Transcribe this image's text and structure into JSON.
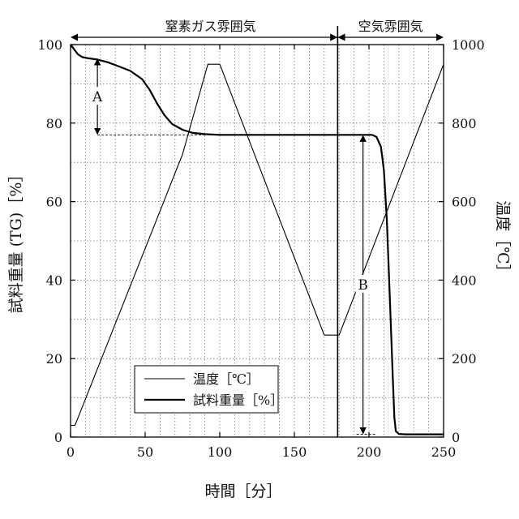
{
  "chart_data": {
    "type": "line",
    "title": "",
    "xlabel": "時間［分］",
    "ylabel_left": "試料重量 (TG)［%］",
    "ylabel_right": "温度［℃］",
    "xlim": [
      0,
      250
    ],
    "ylim_left": [
      0,
      100
    ],
    "ylim_right": [
      0,
      1000
    ],
    "x_ticks": [
      "0",
      "50",
      "100",
      "150",
      "200",
      "250"
    ],
    "y_left_ticks": [
      "0",
      "20",
      "40",
      "60",
      "80",
      "100"
    ],
    "y_right_ticks": [
      "0",
      "200",
      "400",
      "600",
      "800",
      "1000"
    ],
    "grid": true,
    "regions": [
      {
        "label": "窒素ガス雰囲気",
        "x_start": 0,
        "x_end": 179
      },
      {
        "label": "空気雰囲気",
        "x_start": 179,
        "x_end": 250
      }
    ],
    "atmosphere_switch_x": 179,
    "series": [
      {
        "name": "温度［℃］",
        "axis": "right",
        "style": "thin",
        "x": [
          0,
          3,
          75,
          92,
          100,
          170,
          180,
          250
        ],
        "y": [
          30,
          30,
          720,
          950,
          950,
          260,
          260,
          950
        ]
      },
      {
        "name": "試料重量［%］",
        "axis": "left",
        "style": "thick",
        "x": [
          0,
          2,
          5,
          8,
          12,
          18,
          25,
          32,
          40,
          48,
          53,
          58,
          63,
          68,
          75,
          82,
          90,
          100,
          120,
          150,
          180,
          195,
          202,
          205,
          208,
          210,
          212,
          214,
          216,
          217,
          218,
          220,
          225,
          250
        ],
        "y": [
          100,
          99,
          97.5,
          96.8,
          96.5,
          96.2,
          95.5,
          94.5,
          93.3,
          91.2,
          88.5,
          85,
          82,
          79.8,
          78.3,
          77.5,
          77.2,
          77,
          77,
          77,
          77,
          77,
          77,
          76.5,
          74,
          68,
          55,
          35,
          15,
          5,
          1.5,
          0.8,
          0.7,
          0.7
        ]
      }
    ],
    "annotations": [
      {
        "label": "A",
        "x": 18,
        "y_top": 96.5,
        "y_bottom": 77
      },
      {
        "label": "B",
        "x": 196,
        "y_top": 77,
        "y_bottom": 0.7
      }
    ],
    "legend": {
      "placement": "bottom-center",
      "entries": [
        {
          "label": "温度［℃］",
          "style": "thin"
        },
        {
          "label": "試料重量［%］",
          "style": "thick"
        }
      ]
    }
  }
}
